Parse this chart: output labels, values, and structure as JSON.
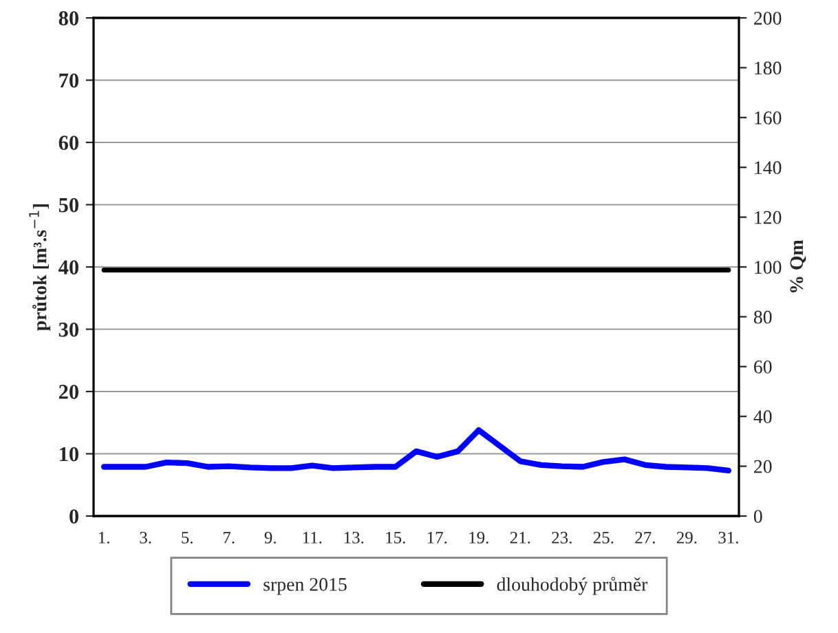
{
  "chart_data": {
    "type": "line",
    "categories": [
      "1.",
      null,
      "3.",
      null,
      "5.",
      null,
      "7.",
      null,
      "9.",
      null,
      "11.",
      null,
      "13.",
      null,
      "15.",
      null,
      "17.",
      null,
      "19.",
      null,
      "21.",
      null,
      "23.",
      null,
      "25.",
      null,
      "27.",
      null,
      "29.",
      null,
      "31."
    ],
    "series": [
      {
        "name": "srpen 2015",
        "color": "#0000ff",
        "values": [
          7.9,
          7.9,
          7.9,
          8.6,
          8.5,
          7.9,
          8.0,
          7.8,
          7.7,
          7.7,
          8.1,
          7.7,
          7.8,
          7.9,
          7.9,
          10.4,
          9.5,
          10.4,
          13.8,
          11.3,
          8.8,
          8.2,
          8.0,
          7.9,
          8.7,
          9.1,
          8.2,
          7.9,
          7.8,
          7.7,
          7.3
        ]
      },
      {
        "name": "dlouhodobý průměr",
        "color": "#000000",
        "values": [
          39.5,
          39.5,
          39.5,
          39.5,
          39.5,
          39.5,
          39.5,
          39.5,
          39.5,
          39.5,
          39.5,
          39.5,
          39.5,
          39.5,
          39.5,
          39.5,
          39.5,
          39.5,
          39.5,
          39.5,
          39.5,
          39.5,
          39.5,
          39.5,
          39.5,
          39.5,
          39.5,
          39.5,
          39.5,
          39.5,
          39.5
        ]
      }
    ],
    "ylabel": "průtok [m³.s$^{−1}$]",
    "y2label": "% Qm",
    "ylim": [
      0,
      80
    ],
    "yticks": [
      0,
      10,
      20,
      30,
      40,
      50,
      60,
      70,
      80
    ],
    "y2lim": [
      0,
      200
    ],
    "y2ticks": [
      0,
      20,
      40,
      60,
      80,
      100,
      120,
      140,
      160,
      180,
      200
    ],
    "grid": "y",
    "legend": "bottom",
    "marker": "none",
    "line_style": "solid"
  }
}
